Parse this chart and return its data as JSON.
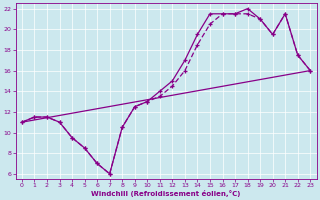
{
  "xlabel": "Windchill (Refroidissement éolien,°C)",
  "bg_color": "#cce8ee",
  "line_color": "#880088",
  "xlim": [
    -0.5,
    23.5
  ],
  "ylim": [
    5.5,
    22.5
  ],
  "xticks": [
    0,
    1,
    2,
    3,
    4,
    5,
    6,
    7,
    8,
    9,
    10,
    11,
    12,
    13,
    14,
    15,
    16,
    17,
    18,
    19,
    20,
    21,
    22,
    23
  ],
  "yticks": [
    6,
    8,
    10,
    12,
    14,
    16,
    18,
    20,
    22
  ],
  "curve_wavy_x": [
    0,
    1,
    2,
    3,
    4,
    5,
    6,
    7,
    8,
    9,
    10,
    11,
    12,
    13,
    14,
    15,
    16,
    17,
    18,
    19,
    20,
    21,
    22,
    23
  ],
  "curve_wavy_y": [
    11,
    11.5,
    11.5,
    11,
    9.5,
    8.5,
    7,
    6,
    10.5,
    12.5,
    13,
    14,
    15,
    17,
    19.5,
    21.5,
    21.5,
    21.5,
    22,
    21,
    19.5,
    21.5,
    17.5,
    16
  ],
  "curve_smooth_x": [
    0,
    1,
    2,
    3,
    4,
    5,
    6,
    7,
    8,
    9,
    10,
    11,
    12,
    13,
    14,
    15,
    16,
    17,
    18,
    19,
    20,
    21,
    22,
    23
  ],
  "curve_smooth_y": [
    11,
    11.5,
    11.5,
    11,
    9.5,
    8.5,
    7,
    6,
    10.5,
    12.5,
    13,
    13.5,
    14.5,
    16,
    18.5,
    20.5,
    21.5,
    21.5,
    21.5,
    21,
    19.5,
    21.5,
    17.5,
    16
  ],
  "line_x": [
    0,
    23
  ],
  "line_y": [
    11.0,
    16.0
  ]
}
